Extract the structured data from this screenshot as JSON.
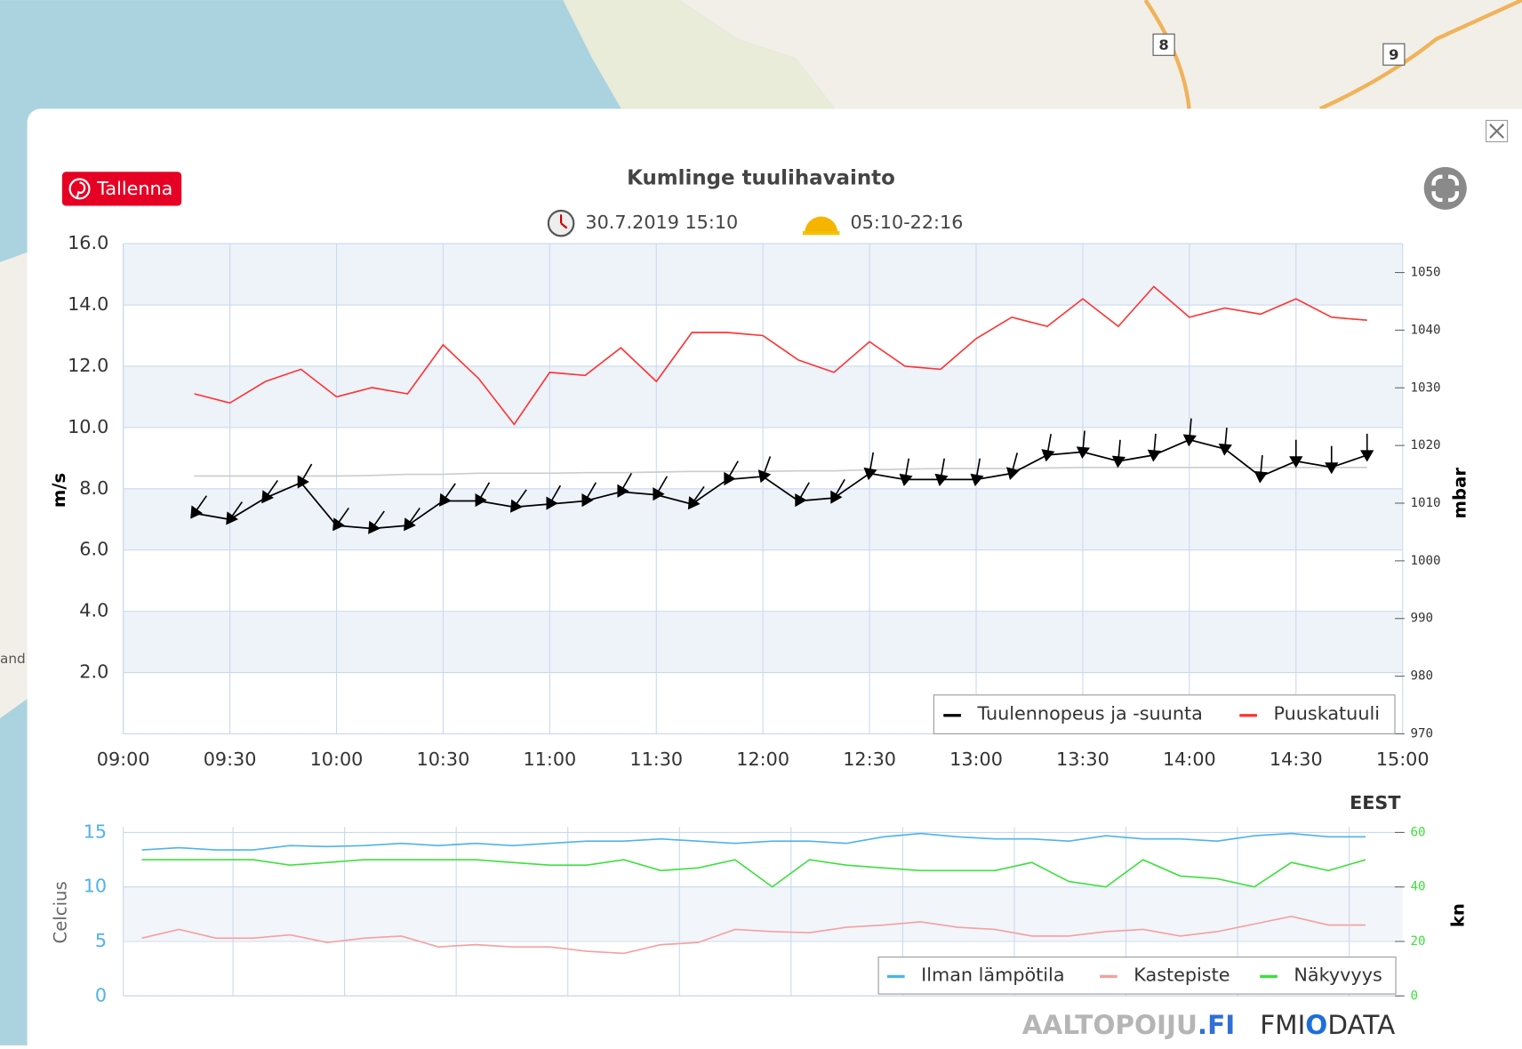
{
  "page": {
    "button": "Tallenna",
    "timezone": "EEST",
    "brand_a": [
      "AALTOPOIJU",
      ".FI"
    ],
    "brand_b": [
      "FMI",
      "O",
      "DATA"
    ],
    "map_labels": [
      "8",
      "9",
      "and"
    ]
  },
  "chart_data": [
    {
      "type": "line",
      "title": "Kumlinge tuulihavainto",
      "subtitle": {
        "observed": "30.7.2019 15:10",
        "daylight": "05:10-22:16"
      },
      "x": [
        "09:20",
        "09:30",
        "09:40",
        "09:50",
        "10:00",
        "10:10",
        "10:20",
        "10:30",
        "10:40",
        "10:50",
        "11:00",
        "11:10",
        "11:20",
        "11:30",
        "11:40",
        "11:50",
        "12:00",
        "12:10",
        "12:20",
        "12:30",
        "12:40",
        "12:50",
        "13:00",
        "13:10",
        "13:20",
        "13:30",
        "13:40",
        "13:50",
        "14:00",
        "14:10",
        "14:20",
        "14:30",
        "14:40",
        "14:50"
      ],
      "xlim": [
        "09:00",
        "15:00"
      ],
      "xticks": [
        "09:00",
        "09:30",
        "10:00",
        "10:30",
        "11:00",
        "11:30",
        "12:00",
        "12:30",
        "13:00",
        "13:30",
        "14:00",
        "14:30",
        "15:00"
      ],
      "ylim": [
        0,
        16
      ],
      "yticks": [
        {
          "value": 2,
          "label": "2.0"
        },
        {
          "value": 4,
          "label": "4.0"
        },
        {
          "value": 6,
          "label": "6.0"
        },
        {
          "value": 8,
          "label": "8.0"
        },
        {
          "value": 10,
          "label": "10.0"
        },
        {
          "value": 12,
          "label": "12.0"
        },
        {
          "value": 14,
          "label": "14.0"
        },
        {
          "value": 16,
          "label": "16.0"
        }
      ],
      "y2lim": [
        970,
        1055
      ],
      "y2ticks": [
        970,
        980,
        990,
        1000,
        1010,
        1020,
        1030,
        1040,
        1050
      ],
      "ylabel": "m/s",
      "y2label": "mbar",
      "grid": true,
      "series": [
        {
          "name": "Tuulennopeus ja -suunta",
          "color": "#000000",
          "values": [
            7.2,
            7.0,
            7.7,
            8.2,
            6.8,
            6.7,
            6.8,
            7.6,
            7.6,
            7.4,
            7.5,
            7.6,
            7.9,
            7.8,
            7.5,
            8.3,
            8.4,
            7.6,
            7.7,
            8.5,
            8.3,
            8.3,
            8.3,
            8.5,
            9.1,
            9.2,
            8.9,
            9.1,
            9.6,
            9.3,
            8.4,
            8.9,
            8.7,
            9.1
          ],
          "directions": [
            35,
            35,
            35,
            30,
            35,
            35,
            35,
            35,
            30,
            35,
            30,
            30,
            30,
            30,
            35,
            30,
            20,
            30,
            30,
            10,
            10,
            10,
            10,
            15,
            10,
            5,
            5,
            5,
            5,
            5,
            5,
            0,
            0,
            0
          ]
        },
        {
          "name": "Puuskatuuli",
          "color": "#ff3333",
          "values": [
            11.1,
            10.8,
            11.5,
            11.9,
            11.0,
            11.3,
            11.1,
            12.7,
            11.6,
            10.1,
            11.8,
            11.7,
            12.6,
            11.5,
            13.1,
            13.1,
            13.0,
            12.2,
            11.8,
            12.8,
            12.0,
            11.9,
            12.9,
            13.6,
            13.3,
            14.2,
            13.3,
            14.6,
            13.6,
            13.9,
            13.7,
            14.2,
            13.6,
            13.5
          ]
        },
        {
          "color": "#cccccc",
          "axis": "y2",
          "values": [
            1014.7,
            1014.7,
            1014.7,
            1014.7,
            1014.7,
            1014.8,
            1015.0,
            1015.0,
            1015.2,
            1015.2,
            1015.2,
            1015.3,
            1015.3,
            1015.4,
            1015.5,
            1015.5,
            1015.5,
            1015.6,
            1015.6,
            1015.8,
            1015.9,
            1016.0,
            1016.0,
            1016.0,
            1016.1,
            1016.2,
            1016.2,
            1016.2,
            1016.2,
            1016.2,
            1016.2,
            1016.2,
            1016.2,
            1016.2
          ]
        }
      ]
    },
    {
      "type": "line",
      "x": [
        "09:20",
        "09:30",
        "09:40",
        "09:50",
        "10:00",
        "10:10",
        "10:20",
        "10:30",
        "10:40",
        "10:50",
        "11:00",
        "11:10",
        "11:20",
        "11:30",
        "11:40",
        "11:50",
        "12:00",
        "12:10",
        "12:20",
        "12:30",
        "12:40",
        "12:50",
        "13:00",
        "13:10",
        "13:20",
        "13:30",
        "13:40",
        "13:50",
        "14:00",
        "14:10",
        "14:20",
        "14:30",
        "14:40",
        "14:50"
      ],
      "xlim": [
        "09:15",
        "15:00"
      ],
      "ylim": [
        0,
        15.5
      ],
      "yticks": [
        0,
        5,
        10,
        15
      ],
      "y2lim": [
        0,
        62
      ],
      "y2ticks": [
        0,
        20,
        40,
        60
      ],
      "ylabel": "Celcius",
      "y2label": "kn",
      "grid": true,
      "series": [
        {
          "name": "Ilman lämpötila",
          "color": "#4fb3e8",
          "values": [
            13.4,
            13.6,
            13.4,
            13.4,
            13.8,
            13.7,
            13.8,
            14.0,
            13.8,
            14.0,
            13.8,
            14.0,
            14.2,
            14.2,
            14.4,
            14.2,
            14.0,
            14.2,
            14.2,
            14.0,
            14.6,
            14.9,
            14.6,
            14.4,
            14.4,
            14.2,
            14.7,
            14.4,
            14.4,
            14.2,
            14.7,
            14.9,
            14.6,
            14.6
          ]
        },
        {
          "name": "Kastepiste",
          "color": "#f4a0a0",
          "values": [
            5.3,
            6.1,
            5.3,
            5.3,
            5.6,
            4.9,
            5.3,
            5.5,
            4.5,
            4.7,
            4.5,
            4.5,
            4.1,
            3.9,
            4.7,
            4.9,
            6.1,
            5.9,
            5.8,
            6.3,
            6.5,
            6.8,
            6.3,
            6.1,
            5.5,
            5.5,
            5.9,
            6.1,
            5.5,
            5.9,
            6.6,
            7.3,
            6.5,
            6.5
          ]
        },
        {
          "name": "Näkyvyys",
          "color": "#3ee03e",
          "axis": "y2",
          "values": [
            50,
            50,
            50,
            50,
            48,
            49,
            50,
            50,
            50,
            50,
            49,
            48,
            48,
            50,
            46,
            47,
            50,
            40,
            50,
            48,
            47,
            46,
            46,
            46,
            49,
            42,
            40,
            50,
            44,
            43,
            40,
            49,
            46,
            50
          ]
        }
      ]
    }
  ]
}
